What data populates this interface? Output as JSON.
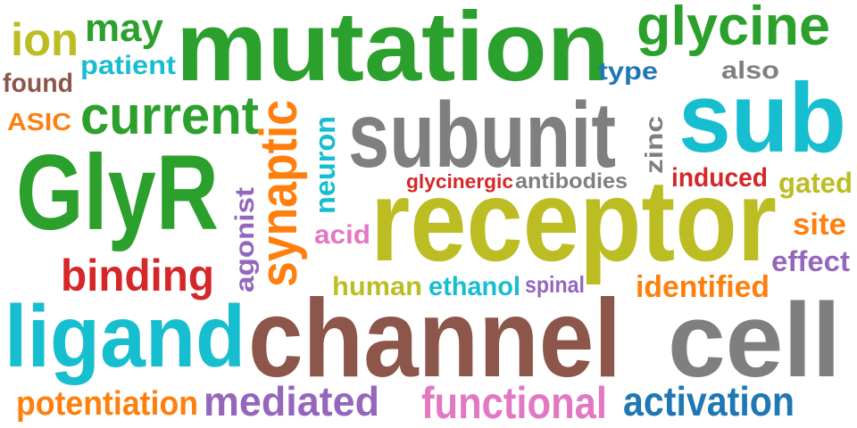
{
  "words": [
    {
      "text": "mutation",
      "color": "#2ca02c"
    },
    {
      "text": "glycine",
      "color": "#2ca02c"
    },
    {
      "text": "ion",
      "color": "#bcbd22"
    },
    {
      "text": "may",
      "color": "#2ca02c"
    },
    {
      "text": "patient",
      "color": "#17becf"
    },
    {
      "text": "found",
      "color": "#8c564b"
    },
    {
      "text": "type",
      "color": "#1f77b4"
    },
    {
      "text": "also",
      "color": "#7f7f7f"
    },
    {
      "text": "ASIC",
      "color": "#ff7f0e"
    },
    {
      "text": "current",
      "color": "#2ca02c"
    },
    {
      "text": "subunit",
      "color": "#7f7f7f"
    },
    {
      "text": "sub",
      "color": "#17becf"
    },
    {
      "text": "synaptic",
      "color": "#ff7f0e"
    },
    {
      "text": "neuron",
      "color": "#17becf"
    },
    {
      "text": "zinc",
      "color": "#7f7f7f"
    },
    {
      "text": "GlyR",
      "color": "#2ca02c"
    },
    {
      "text": "glycinergic",
      "color": "#d62728"
    },
    {
      "text": "antibodies",
      "color": "#7f7f7f"
    },
    {
      "text": "induced",
      "color": "#d62728"
    },
    {
      "text": "gated",
      "color": "#bcbd22"
    },
    {
      "text": "receptor",
      "color": "#bcbd22"
    },
    {
      "text": "agonist",
      "color": "#9467bd"
    },
    {
      "text": "acid",
      "color": "#e377c2"
    },
    {
      "text": "site",
      "color": "#ff7f0e"
    },
    {
      "text": "effect",
      "color": "#9467bd"
    },
    {
      "text": "binding",
      "color": "#d62728"
    },
    {
      "text": "human",
      "color": "#bcbd22"
    },
    {
      "text": "ethanol",
      "color": "#17becf"
    },
    {
      "text": "spinal",
      "color": "#9467bd"
    },
    {
      "text": "identified",
      "color": "#ff7f0e"
    },
    {
      "text": "ligand",
      "color": "#17becf"
    },
    {
      "text": "channel",
      "color": "#8c564b"
    },
    {
      "text": "cell",
      "color": "#7f7f7f"
    },
    {
      "text": "potentiation",
      "color": "#ff7f0e"
    },
    {
      "text": "mediated",
      "color": "#9467bd"
    },
    {
      "text": "functional",
      "color": "#e377c2"
    },
    {
      "text": "activation",
      "color": "#1f77b4"
    }
  ]
}
